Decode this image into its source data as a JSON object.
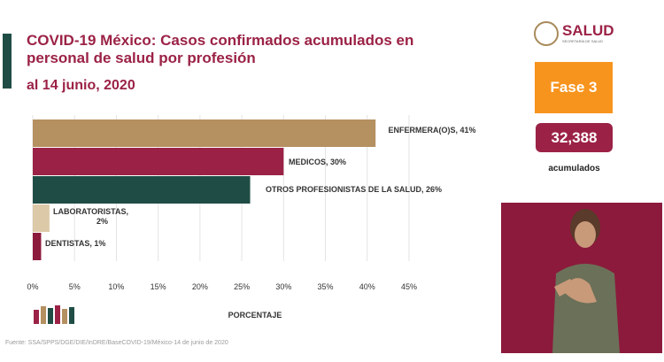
{
  "title": "COVID-19 México: Casos confirmados acumulados en personal de salud por profesión",
  "date": "al 14 junio, 2020",
  "logo": {
    "name": "SALUD",
    "subtitle": "SECRETARÍA DE SALUD"
  },
  "phase": "Fase 3",
  "total": "32,388",
  "total_label": "acumulados",
  "source": "Fuente: SSA/SPPS/DGE/DIE/InDRE/BaseCOVID-19/México-14 de junio de 2020",
  "colors": {
    "accent": "#9b2246",
    "dark_green": "#1f4d45",
    "gold": "#b59060",
    "orange": "#f7941d"
  },
  "chart_data": {
    "type": "bar",
    "orientation": "horizontal",
    "categories": [
      "ENFERMERA(O)S",
      "MEDICOS",
      "OTROS PROFESIONISTAS DE  LA SALUD",
      "LABORATORISTAS",
      "DENTISTAS"
    ],
    "values": [
      41,
      30,
      26,
      2,
      1
    ],
    "data_labels": [
      "ENFERMERA(O)S, 41%",
      "MEDICOS, 30%",
      "OTROS PROFESIONISTAS DE  LA SALUD, 26%",
      "LABORATORISTAS, 2%",
      "DENTISTAS, 1%"
    ],
    "bar_colors": [
      "#b59060",
      "#9b2246",
      "#1f4d45",
      "#dcc9a8",
      "#8c1a3c"
    ],
    "xlim": [
      0,
      45
    ],
    "xticks": [
      "0%",
      "5%",
      "10%",
      "15%",
      "20%",
      "25%",
      "30%",
      "35%",
      "40%",
      "45%"
    ],
    "xlabel": "PORCENTAJE",
    "ylabel": "",
    "grid": true,
    "legend": "none"
  }
}
